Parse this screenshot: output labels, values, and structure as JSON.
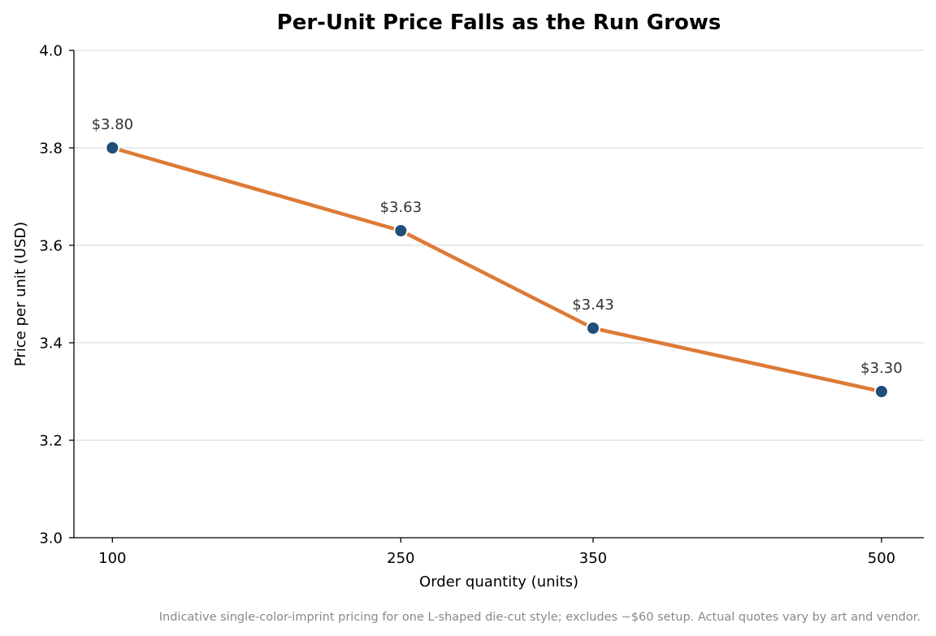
{
  "chart_data": {
    "type": "line",
    "title": "Per-Unit Price Falls as the Run Grows",
    "xlabel": "Order quantity (units)",
    "ylabel": "Price per unit (USD)",
    "x": [
      100,
      250,
      350,
      500
    ],
    "x_tick_labels": [
      "100",
      "250",
      "350",
      "500"
    ],
    "series": [
      {
        "values": [
          3.8,
          3.63,
          3.43,
          3.3
        ],
        "labels": [
          "$3.80",
          "$3.63",
          "$3.43",
          "$3.30"
        ]
      }
    ],
    "ylim": [
      3.0,
      4.0
    ],
    "y_ticks": [
      3.0,
      3.2,
      3.4,
      3.6,
      3.8,
      4.0
    ],
    "y_tick_labels": [
      "3.0",
      "3.2",
      "3.4",
      "3.6",
      "3.8",
      "4.0"
    ],
    "grid": "horizontal",
    "footnote": "Indicative single-color-imprint pricing for one L-shaped die-cut style; excludes ~$60 setup. Actual quotes vary by art and vendor.",
    "colors": {
      "line": "#dd7a35",
      "marker": "#1f4e79",
      "marker_edge": "#ffffff",
      "grid": "#dddddd"
    }
  }
}
